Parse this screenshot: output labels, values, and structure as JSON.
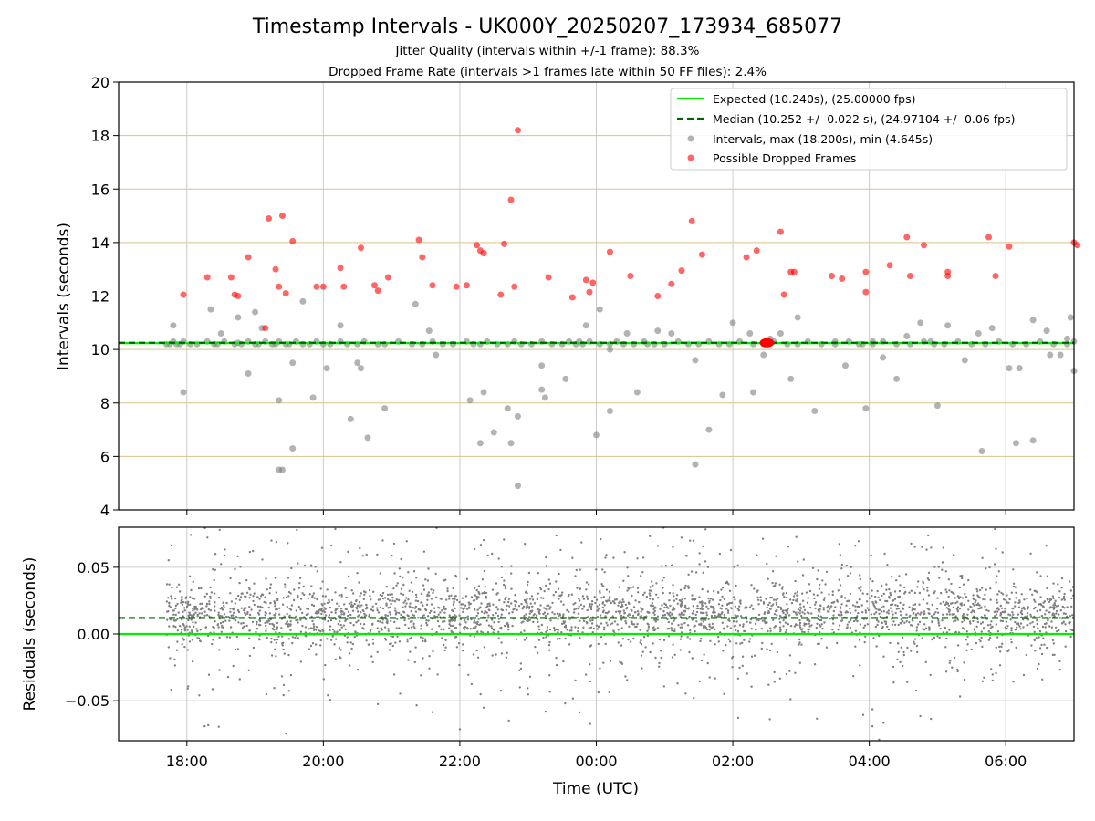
{
  "figure": {
    "title": "Timestamp Intervals - UK000Y_20250207_173934_685077",
    "subtitle_1": "Jitter Quality (intervals within +/-1 frame): 88.3%",
    "subtitle_2": "Dropped Frame Rate (intervals >1 frames late within 50 FF files): 2.4%"
  },
  "colors": {
    "expected": "#00ee00",
    "median": "#006400",
    "intervals": "#808080",
    "dropped": "#ff0000",
    "hgrid": "#d9c38a",
    "vgrid": "#cccccc"
  },
  "chart_data": [
    {
      "type": "scatter",
      "xlabel": "",
      "ylabel": "Intervals (seconds)",
      "ylim": [
        4,
        20
      ],
      "yticks": [
        4,
        6,
        8,
        10,
        12,
        14,
        16,
        18,
        20
      ],
      "ytick_labels": [
        "4",
        "6",
        "8",
        "10",
        "12",
        "14",
        "16",
        "18",
        "20"
      ],
      "xlim_hours": [
        17.0,
        31.0
      ],
      "grid": true,
      "legend_placement": "upper-right",
      "legend": [
        {
          "label": "Expected (10.240s), (25.00000 fps)",
          "style": "line"
        },
        {
          "label": "Median (10.252 +/- 0.022 s), (24.97104 +/- 0.06 fps)",
          "style": "dashed"
        },
        {
          "label": "Intervals, max (18.200s), min (4.645s)",
          "style": "dot-gray"
        },
        {
          "label": "Possible Dropped Frames",
          "style": "dot-red"
        }
      ],
      "expected_y": 10.24,
      "median_y": 10.252,
      "series": [
        {
          "name": "Intervals, max (18.200s), min (4.645s)",
          "x": [
            17.7,
            17.75,
            17.8,
            17.85,
            17.9,
            17.95,
            18.05,
            18.15,
            18.3,
            18.4,
            18.45,
            18.55,
            18.7,
            18.75,
            18.8,
            18.9,
            19.0,
            19.05,
            19.15,
            19.25,
            19.3,
            19.35,
            19.45,
            19.5,
            19.6,
            19.7,
            19.8,
            19.9,
            20.0,
            20.1,
            20.25,
            20.35,
            20.5,
            20.6,
            20.8,
            20.9,
            21.1,
            21.3,
            21.45,
            21.6,
            21.75,
            21.9,
            22.1,
            22.2,
            22.3,
            22.4,
            22.55,
            22.7,
            22.8,
            22.9,
            23.05,
            23.2,
            23.35,
            23.5,
            23.6,
            23.7,
            23.8,
            23.9,
            24.05,
            24.2,
            24.3,
            24.4,
            24.55,
            24.7,
            24.85,
            25.0,
            25.2,
            25.35,
            25.5,
            25.65,
            25.8,
            25.95,
            26.1,
            26.3,
            26.45,
            26.6,
            26.8,
            26.95,
            27.1,
            27.3,
            27.5,
            27.7,
            27.9,
            28.05,
            28.2,
            28.4,
            28.6,
            28.8,
            28.95,
            29.1,
            29.3,
            29.5,
            29.7,
            29.9,
            30.1,
            30.3,
            30.5,
            30.7,
            30.9,
            31.0,
            17.8,
            17.95,
            18.35,
            18.5,
            18.75,
            18.9,
            19.0,
            19.1,
            19.35,
            19.55,
            19.7,
            19.85,
            20.05,
            20.25,
            20.5,
            20.55,
            20.9,
            21.35,
            21.55,
            21.65,
            22.15,
            22.3,
            22.5,
            22.75,
            22.85,
            23.2,
            23.55,
            23.75,
            23.85,
            24.05,
            24.2,
            24.45,
            24.6,
            24.75,
            24.9,
            25.1,
            25.45,
            25.65,
            25.85,
            26.0,
            26.25,
            26.45,
            26.55,
            26.7,
            26.85,
            26.95,
            27.2,
            27.5,
            27.65,
            27.85,
            28.05,
            28.2,
            28.4,
            28.55,
            28.75,
            28.9,
            29.15,
            29.4,
            29.6,
            29.8,
            30.05,
            30.2,
            30.4,
            30.6,
            30.8,
            30.95,
            22.35,
            22.7,
            22.85,
            19.35,
            19.4,
            19.55,
            20.4,
            20.65,
            23.2,
            23.25,
            24.0,
            24.2,
            25.45,
            26.3,
            27.95,
            29.0,
            29.65,
            30.4,
            31.0,
            30.15,
            30.65,
            30.9
          ],
          "y": [
            10.2,
            10.2,
            10.3,
            10.2,
            10.2,
            10.3,
            10.2,
            10.2,
            10.3,
            10.2,
            10.2,
            10.3,
            10.2,
            10.25,
            10.2,
            10.3,
            10.2,
            10.2,
            10.3,
            10.2,
            10.2,
            10.3,
            10.2,
            10.2,
            10.3,
            10.2,
            10.2,
            10.3,
            10.2,
            10.2,
            10.3,
            10.2,
            10.2,
            10.3,
            10.2,
            10.2,
            10.3,
            10.2,
            10.2,
            10.3,
            10.2,
            10.2,
            10.3,
            10.2,
            10.2,
            10.3,
            10.2,
            10.2,
            10.3,
            10.2,
            10.2,
            10.3,
            10.2,
            10.2,
            10.3,
            10.2,
            10.2,
            10.3,
            10.2,
            10.2,
            10.3,
            10.2,
            10.2,
            10.3,
            10.2,
            10.2,
            10.3,
            10.2,
            10.2,
            10.3,
            10.2,
            10.2,
            10.3,
            10.2,
            10.2,
            10.3,
            10.2,
            10.2,
            10.3,
            10.2,
            10.2,
            10.3,
            10.2,
            10.2,
            10.3,
            10.2,
            10.2,
            10.3,
            10.2,
            10.2,
            10.3,
            10.2,
            10.2,
            10.3,
            10.2,
            10.2,
            10.3,
            10.2,
            10.2,
            10.3,
            10.9,
            8.4,
            11.5,
            10.6,
            11.2,
            9.1,
            11.4,
            10.8,
            8.1,
            9.5,
            11.8,
            8.2,
            9.3,
            10.9,
            9.5,
            9.3,
            7.8,
            11.7,
            10.7,
            9.8,
            8.1,
            6.5,
            6.9,
            6.5,
            7.5,
            9.4,
            8.9,
            10.3,
            10.9,
            11.5,
            7.7,
            10.6,
            8.4,
            10.2,
            10.7,
            10.6,
            9.6,
            7.0,
            8.3,
            11.0,
            10.6,
            9.8,
            10.4,
            10.6,
            8.9,
            11.2,
            7.7,
            10.3,
            9.4,
            10.2,
            10.3,
            9.7,
            8.9,
            10.5,
            11.0,
            10.3,
            10.9,
            9.6,
            10.6,
            10.8,
            9.3,
            9.3,
            11.1,
            10.7,
            9.8,
            11.2,
            8.4,
            7.8,
            4.9,
            5.5,
            5.5,
            6.3,
            7.4,
            6.7,
            8.5,
            8.2,
            6.8,
            10.0,
            5.7,
            8.4,
            7.8,
            7.9,
            6.2,
            6.6,
            9.2,
            6.5,
            9.8,
            10.4
          ]
        },
        {
          "name": "Possible Dropped Frames",
          "x": [
            17.95,
            18.3,
            18.65,
            18.7,
            18.75,
            18.9,
            19.15,
            19.2,
            19.3,
            19.35,
            19.4,
            19.45,
            19.55,
            19.9,
            20.0,
            20.25,
            20.3,
            20.55,
            20.75,
            20.8,
            20.95,
            21.4,
            21.45,
            21.6,
            21.95,
            22.1,
            22.25,
            22.3,
            22.35,
            22.6,
            22.65,
            22.75,
            22.8,
            22.85,
            23.3,
            23.65,
            23.85,
            23.9,
            23.95,
            24.2,
            24.5,
            24.9,
            25.1,
            25.25,
            25.4,
            25.55,
            26.2,
            26.35,
            26.7,
            26.75,
            26.85,
            26.9,
            27.45,
            27.6,
            27.95,
            27.95,
            28.3,
            28.55,
            28.6,
            28.8,
            29.15,
            29.15,
            29.75,
            29.85,
            30.05,
            31.0,
            31.05
          ],
          "y": [
            12.05,
            12.7,
            12.7,
            12.05,
            12.0,
            13.45,
            10.8,
            14.9,
            13.0,
            12.35,
            15.0,
            12.1,
            14.05,
            12.35,
            12.35,
            13.05,
            12.35,
            13.8,
            12.4,
            12.2,
            12.7,
            14.1,
            13.45,
            12.4,
            12.35,
            12.4,
            13.9,
            13.7,
            13.6,
            12.05,
            13.95,
            15.6,
            12.35,
            18.2,
            12.7,
            11.95,
            12.6,
            12.15,
            12.5,
            13.65,
            12.75,
            12.0,
            12.45,
            12.95,
            14.8,
            13.55,
            13.45,
            13.7,
            14.4,
            12.05,
            12.9,
            12.9,
            12.75,
            12.65,
            12.15,
            12.9,
            13.15,
            14.2,
            12.75,
            13.9,
            12.75,
            12.9,
            14.2,
            12.75,
            13.85,
            14.0,
            13.9
          ]
        }
      ]
    },
    {
      "type": "scatter",
      "xlabel": "Time (UTC)",
      "ylabel": "Residuals (seconds)",
      "ylim": [
        -0.08,
        0.08
      ],
      "yticks": [
        -0.05,
        0.0,
        0.05
      ],
      "ytick_labels": [
        "−0.05",
        "0.00",
        "0.05"
      ],
      "xlim_hours": [
        17.0,
        31.0
      ],
      "xticks_hours": [
        18,
        20,
        22,
        24,
        26,
        28,
        30
      ],
      "xtick_labels": [
        "18:00",
        "20:00",
        "22:00",
        "00:00",
        "02:00",
        "04:00",
        "06:00"
      ],
      "grid": true,
      "expected_residual": 0.0,
      "median_residual": 0.012,
      "series": [
        {
          "name": "",
          "x_range_hours": [
            17.7,
            31.0
          ],
          "point_count": 3200,
          "core_mean": 0.015,
          "core_spread": 0.015,
          "spread_min": -0.08,
          "spread_max": 0.08
        }
      ]
    }
  ]
}
